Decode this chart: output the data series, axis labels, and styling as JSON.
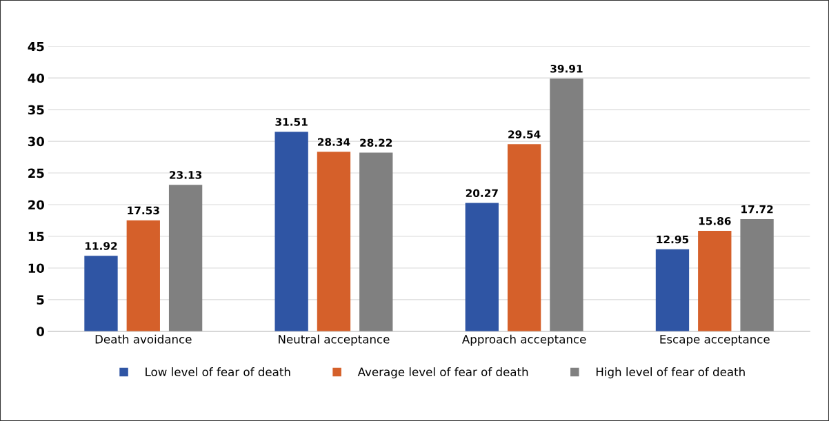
{
  "chart_data": {
    "type": "bar",
    "categories": [
      "Death avoidance",
      "Neutral acceptance",
      "Approach acceptance",
      "Escape acceptance"
    ],
    "series": [
      {
        "name": "Low level of fear of death",
        "color": "#2f55a4",
        "values": [
          11.92,
          31.51,
          20.27,
          12.95
        ]
      },
      {
        "name": "Average level of fear of death",
        "color": "#d5602a",
        "values": [
          17.53,
          28.34,
          29.54,
          15.86
        ]
      },
      {
        "name": "High level of fear of death",
        "color": "#808080",
        "values": [
          23.13,
          28.22,
          39.91,
          17.72
        ]
      }
    ],
    "ylim": [
      0,
      45
    ],
    "yticks": [
      0,
      5,
      10,
      15,
      20,
      25,
      30,
      35,
      40,
      45
    ],
    "grid": "y",
    "legend": "bottom",
    "data_labels": true
  }
}
